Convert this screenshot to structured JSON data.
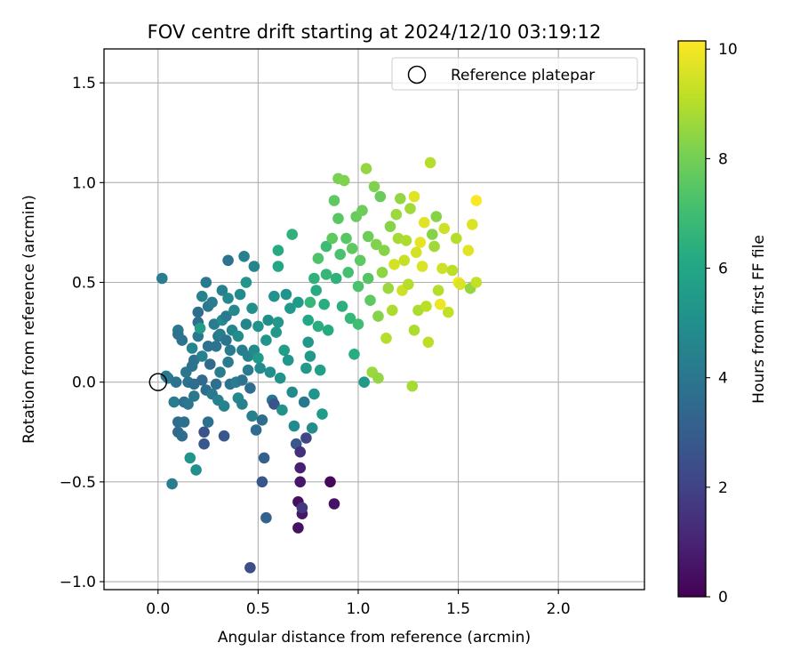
{
  "chart_data": {
    "type": "scatter",
    "title": "FOV centre drift starting at 2024/12/10 03:19:12",
    "xlabel": "Angular distance from reference (arcmin)",
    "ylabel": "Rotation from reference (arcmin)",
    "xlim": [
      -0.27,
      2.43
    ],
    "ylim": [
      -1.04,
      1.67
    ],
    "xticks": [
      0.0,
      0.5,
      1.0,
      1.5,
      2.0
    ],
    "xtick_labels": [
      "0.0",
      "0.5",
      "1.0",
      "1.5",
      "2.0"
    ],
    "yticks": [
      -1.0,
      -0.5,
      0.0,
      0.5,
      1.0,
      1.5
    ],
    "ytick_labels": [
      "−1.0",
      "−0.5",
      "0.0",
      "0.5",
      "1.0",
      "1.5"
    ],
    "grid": true,
    "legend": {
      "placement": "top-right",
      "entries": [
        "Reference platepar"
      ]
    },
    "reference_point": {
      "name": "Reference platepar",
      "x": 0.0,
      "y": 0.0,
      "marker": "open-circle"
    },
    "colorbar": {
      "label": "Hours from first FF file",
      "colormap": "viridis",
      "range": [
        0,
        10.15
      ],
      "ticks": [
        0,
        2,
        4,
        6,
        8,
        10
      ],
      "tick_labels": [
        "0",
        "2",
        "4",
        "6",
        "8",
        "10"
      ]
    },
    "point_columns": [
      "x",
      "y",
      "hours"
    ],
    "points": [
      [
        0.02,
        0.52,
        4.3
      ],
      [
        0.07,
        -0.51,
        4.3
      ],
      [
        0.04,
        0.03,
        4.2
      ],
      [
        0.05,
        0.02,
        4.1
      ],
      [
        0.08,
        -0.1,
        4.2
      ],
      [
        0.09,
        0.0,
        3.8
      ],
      [
        0.1,
        0.26,
        4.1
      ],
      [
        0.1,
        0.24,
        3.9
      ],
      [
        0.1,
        -0.2,
        3.6
      ],
      [
        0.1,
        -0.25,
        3.5
      ],
      [
        0.12,
        0.21,
        3.8
      ],
      [
        0.12,
        -0.27,
        3.6
      ],
      [
        0.13,
        -0.1,
        3.7
      ],
      [
        0.13,
        -0.2,
        3.7
      ],
      [
        0.14,
        0.05,
        4.0
      ],
      [
        0.15,
        0.0,
        3.9
      ],
      [
        0.15,
        -0.11,
        4.0
      ],
      [
        0.16,
        -0.38,
        5.2
      ],
      [
        0.17,
        0.08,
        3.9
      ],
      [
        0.17,
        0.17,
        4.6
      ],
      [
        0.18,
        0.11,
        3.8
      ],
      [
        0.18,
        -0.01,
        3.6
      ],
      [
        0.18,
        -0.07,
        4.0
      ],
      [
        0.19,
        -0.44,
        5.0
      ],
      [
        0.2,
        0.3,
        3.7
      ],
      [
        0.2,
        0.35,
        3.6
      ],
      [
        0.2,
        0.23,
        4.0
      ],
      [
        0.21,
        0.27,
        5.6
      ],
      [
        0.22,
        0.13,
        4.4
      ],
      [
        0.22,
        0.01,
        3.5
      ],
      [
        0.22,
        0.43,
        4.5
      ],
      [
        0.23,
        -0.25,
        2.6
      ],
      [
        0.23,
        -0.31,
        2.8
      ],
      [
        0.24,
        -0.04,
        3.6
      ],
      [
        0.24,
        0.5,
        4.1
      ],
      [
        0.25,
        0.38,
        4.0
      ],
      [
        0.25,
        0.18,
        3.8
      ],
      [
        0.25,
        -0.2,
        3.7
      ],
      [
        0.26,
        0.09,
        3.5
      ],
      [
        0.27,
        0.4,
        4.2
      ],
      [
        0.27,
        -0.06,
        4.1
      ],
      [
        0.28,
        0.29,
        4.2
      ],
      [
        0.29,
        0.18,
        3.8
      ],
      [
        0.29,
        -0.01,
        3.7
      ],
      [
        0.3,
        0.23,
        4.0
      ],
      [
        0.3,
        -0.09,
        4.4
      ],
      [
        0.31,
        0.24,
        4.3
      ],
      [
        0.31,
        0.05,
        4.3
      ],
      [
        0.32,
        0.46,
        4.4
      ],
      [
        0.32,
        0.31,
        4.8
      ],
      [
        0.33,
        -0.12,
        4.5
      ],
      [
        0.33,
        -0.27,
        2.8
      ],
      [
        0.34,
        0.33,
        4.1
      ],
      [
        0.34,
        0.21,
        3.9
      ],
      [
        0.35,
        0.61,
        3.8
      ],
      [
        0.35,
        0.1,
        4.2
      ],
      [
        0.35,
        0.42,
        4.7
      ],
      [
        0.36,
        0.16,
        4.2
      ],
      [
        0.36,
        -0.01,
        3.9
      ],
      [
        0.37,
        0.26,
        4.6
      ],
      [
        0.38,
        0.36,
        4.7
      ],
      [
        0.39,
        0.0,
        4.3
      ],
      [
        0.4,
        -0.08,
        4.7
      ],
      [
        0.4,
        0.23,
        4.9
      ],
      [
        0.41,
        0.44,
        4.8
      ],
      [
        0.42,
        -0.11,
        4.4
      ],
      [
        0.42,
        0.01,
        3.9
      ],
      [
        0.42,
        0.16,
        4.3
      ],
      [
        0.43,
        0.63,
        4.4
      ],
      [
        0.44,
        0.29,
        4.6
      ],
      [
        0.44,
        0.5,
        5.2
      ],
      [
        0.45,
        0.13,
        4.5
      ],
      [
        0.45,
        0.06,
        4.2
      ],
      [
        0.46,
        -0.93,
        2.4
      ],
      [
        0.46,
        -0.03,
        3.6
      ],
      [
        0.47,
        -0.17,
        4.4
      ],
      [
        0.47,
        0.37,
        5.0
      ],
      [
        0.48,
        0.58,
        4.6
      ],
      [
        0.48,
        0.16,
        4.8
      ],
      [
        0.49,
        -0.24,
        3.6
      ],
      [
        0.5,
        0.28,
        5.1
      ],
      [
        0.5,
        0.12,
        5.5
      ],
      [
        0.51,
        0.07,
        4.8
      ],
      [
        0.52,
        -0.5,
        2.7
      ],
      [
        0.52,
        -0.19,
        3.6
      ],
      [
        0.53,
        -0.38,
        3.1
      ],
      [
        0.54,
        -0.68,
        3.2
      ],
      [
        0.54,
        0.21,
        5.2
      ],
      [
        0.55,
        0.31,
        4.9
      ],
      [
        0.56,
        0.05,
        5.0
      ],
      [
        0.57,
        -0.09,
        3.8
      ],
      [
        0.58,
        -0.11,
        2.6
      ],
      [
        0.58,
        0.43,
        5.1
      ],
      [
        0.59,
        0.25,
        5.4
      ],
      [
        0.6,
        0.66,
        6.2
      ],
      [
        0.6,
        0.58,
        6.0
      ],
      [
        0.6,
        0.3,
        5.4
      ],
      [
        0.61,
        0.02,
        5.1
      ],
      [
        0.62,
        -0.14,
        5.1
      ],
      [
        0.63,
        0.16,
        5.6
      ],
      [
        0.64,
        0.44,
        5.2
      ],
      [
        0.65,
        0.11,
        5.3
      ],
      [
        0.66,
        0.37,
        5.4
      ],
      [
        0.67,
        -0.05,
        4.8
      ],
      [
        0.67,
        0.74,
        6.5
      ],
      [
        0.68,
        -0.22,
        4.8
      ],
      [
        0.69,
        -0.31,
        2.8
      ],
      [
        0.7,
        -0.6,
        0.4
      ],
      [
        0.7,
        -0.73,
        0.5
      ],
      [
        0.7,
        0.4,
        5.5
      ],
      [
        0.71,
        -0.43,
        0.9
      ],
      [
        0.71,
        -0.5,
        0.6
      ],
      [
        0.71,
        -0.35,
        1.4
      ],
      [
        0.72,
        -0.66,
        0.6
      ],
      [
        0.72,
        -0.63,
        1.6
      ],
      [
        0.73,
        -0.1,
        4.0
      ],
      [
        0.74,
        -0.28,
        2.1
      ],
      [
        0.74,
        0.07,
        5.4
      ],
      [
        0.75,
        0.2,
        5.4
      ],
      [
        0.75,
        0.31,
        6.1
      ],
      [
        0.76,
        0.4,
        6.7
      ],
      [
        0.76,
        0.13,
        5.4
      ],
      [
        0.77,
        -0.23,
        4.9
      ],
      [
        0.78,
        0.52,
        6.5
      ],
      [
        0.78,
        -0.06,
        5.2
      ],
      [
        0.79,
        0.46,
        6.2
      ],
      [
        0.8,
        0.28,
        6.3
      ],
      [
        0.8,
        0.62,
        7.3
      ],
      [
        0.81,
        0.06,
        5.7
      ],
      [
        0.82,
        -0.16,
        5.5
      ],
      [
        0.83,
        0.39,
        6.3
      ],
      [
        0.84,
        0.68,
        6.9
      ],
      [
        0.84,
        0.54,
        6.7
      ],
      [
        0.85,
        0.26,
        6.2
      ],
      [
        0.86,
        -0.5,
        0.2
      ],
      [
        0.87,
        0.72,
        7.6
      ],
      [
        0.88,
        -0.61,
        0.5
      ],
      [
        0.88,
        0.91,
        7.6
      ],
      [
        0.89,
        0.52,
        6.5
      ],
      [
        0.9,
        1.02,
        8.1
      ],
      [
        0.9,
        0.82,
        7.5
      ],
      [
        0.91,
        0.64,
        7.2
      ],
      [
        0.92,
        0.38,
        6.4
      ],
      [
        0.93,
        1.01,
        8.2
      ],
      [
        0.94,
        0.72,
        7.5
      ],
      [
        0.95,
        0.55,
        7.1
      ],
      [
        0.96,
        0.32,
        6.7
      ],
      [
        0.97,
        0.67,
        7.6
      ],
      [
        0.98,
        0.14,
        6.3
      ],
      [
        0.99,
        0.83,
        7.8
      ],
      [
        1.0,
        0.48,
        7.2
      ],
      [
        1.0,
        0.29,
        7.0
      ],
      [
        1.01,
        0.61,
        7.6
      ],
      [
        1.02,
        0.86,
        7.9
      ],
      [
        1.03,
        0.0,
        5.5
      ],
      [
        1.04,
        1.07,
        8.5
      ],
      [
        1.05,
        0.73,
        7.9
      ],
      [
        1.05,
        0.52,
        7.4
      ],
      [
        1.06,
        0.41,
        7.6
      ],
      [
        1.07,
        0.05,
        8.6
      ],
      [
        1.08,
        0.98,
        8.2
      ],
      [
        1.09,
        0.69,
        8.2
      ],
      [
        1.1,
        0.33,
        8.3
      ],
      [
        1.1,
        0.02,
        8.5
      ],
      [
        1.11,
        0.93,
        7.8
      ],
      [
        1.12,
        0.55,
        8.4
      ],
      [
        1.13,
        0.66,
        8.3
      ],
      [
        1.14,
        0.22,
        9.0
      ],
      [
        1.15,
        0.47,
        8.6
      ],
      [
        1.16,
        0.78,
        8.3
      ],
      [
        1.17,
        0.36,
        8.9
      ],
      [
        1.18,
        0.59,
        9.5
      ],
      [
        1.19,
        0.84,
        8.6
      ],
      [
        1.2,
        0.72,
        8.8
      ],
      [
        1.21,
        0.92,
        8.5
      ],
      [
        1.22,
        0.46,
        9.4
      ],
      [
        1.23,
        0.61,
        9.3
      ],
      [
        1.24,
        0.71,
        8.9
      ],
      [
        1.25,
        0.49,
        9.0
      ],
      [
        1.26,
        0.87,
        8.7
      ],
      [
        1.27,
        -0.02,
        8.8
      ],
      [
        1.28,
        0.93,
        9.7
      ],
      [
        1.28,
        0.26,
        8.9
      ],
      [
        1.29,
        0.65,
        9.5
      ],
      [
        1.3,
        0.36,
        8.9
      ],
      [
        1.31,
        0.7,
        9.8
      ],
      [
        1.32,
        0.58,
        9.6
      ],
      [
        1.33,
        0.8,
        9.7
      ],
      [
        1.34,
        0.38,
        9.1
      ],
      [
        1.35,
        0.2,
        9.1
      ],
      [
        1.36,
        1.1,
        9.0
      ],
      [
        1.37,
        0.74,
        8.3
      ],
      [
        1.38,
        0.68,
        8.7
      ],
      [
        1.39,
        0.83,
        8.3
      ],
      [
        1.4,
        0.46,
        9.0
      ],
      [
        1.41,
        0.39,
        9.9
      ],
      [
        1.42,
        0.57,
        9.4
      ],
      [
        1.43,
        0.77,
        9.4
      ],
      [
        1.45,
        0.35,
        9.2
      ],
      [
        1.47,
        0.56,
        9.1
      ],
      [
        1.49,
        0.72,
        9.0
      ],
      [
        1.5,
        0.5,
        10.0
      ],
      [
        1.51,
        0.49,
        9.6
      ],
      [
        1.55,
        0.66,
        9.7
      ],
      [
        1.56,
        0.47,
        8.5
      ],
      [
        1.57,
        0.79,
        9.6
      ],
      [
        1.59,
        0.91,
        10.1
      ],
      [
        1.59,
        0.5,
        9.2
      ]
    ]
  }
}
